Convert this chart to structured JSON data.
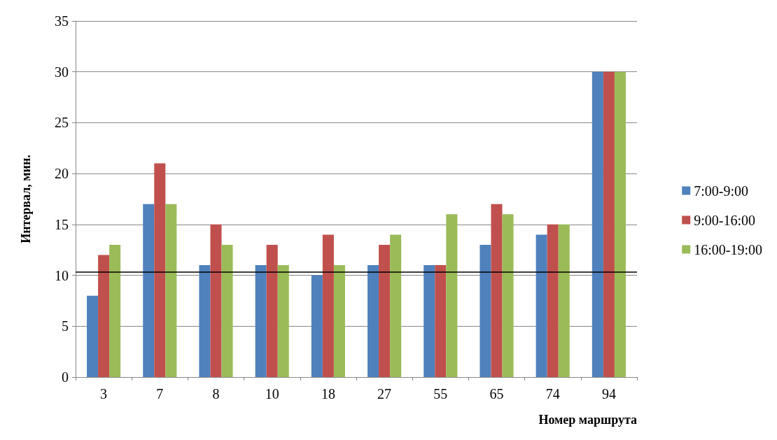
{
  "chart_data": {
    "type": "bar",
    "xlabel": "Номер маршрута",
    "ylabel": "Интервал, мин.",
    "categories": [
      "3",
      "7",
      "8",
      "10",
      "18",
      "27",
      "55",
      "65",
      "74",
      "94"
    ],
    "series": [
      {
        "name": "7:00-9:00",
        "color": "#4f81bd",
        "values": [
          8,
          17,
          11,
          11,
          10,
          11,
          11,
          13,
          14,
          30
        ]
      },
      {
        "name": "9:00-16:00",
        "color": "#c0504d",
        "values": [
          12,
          21,
          15,
          13,
          14,
          13,
          11,
          17,
          15,
          30
        ]
      },
      {
        "name": "16:00-19:00",
        "color": "#9bbb59",
        "values": [
          13,
          17,
          13,
          11,
          11,
          14,
          16,
          16,
          15,
          30
        ]
      }
    ],
    "ylim": [
      0,
      35
    ],
    "yticks": [
      0,
      5,
      10,
      15,
      20,
      25,
      30,
      35
    ],
    "grid": "y",
    "legend": "right",
    "ref_lines": [
      {
        "axis": "y",
        "value": 10.3,
        "color": "#000000"
      }
    ]
  }
}
